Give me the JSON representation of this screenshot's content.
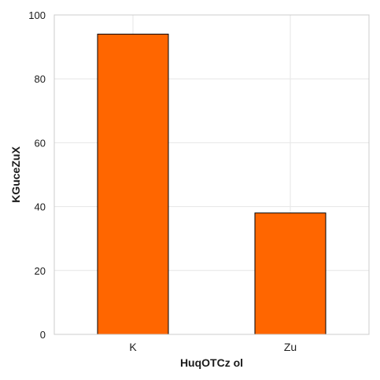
{
  "chart_data": {
    "type": "bar",
    "categories": [
      "K",
      "Zu"
    ],
    "values": [
      94,
      38
    ],
    "title": "",
    "xlabel": "HuqOTCz ol",
    "ylabel": "KGuceZuX",
    "ylim": [
      0,
      100
    ],
    "yticks": [
      "0",
      "20",
      "40",
      "60",
      "80",
      "100"
    ],
    "grid": true,
    "legend": "none",
    "colors": {
      "bar_fill": "#ff6600",
      "bar_stroke": "#000000",
      "grid": "#e6e6e6",
      "frame": "#cccccc"
    }
  }
}
